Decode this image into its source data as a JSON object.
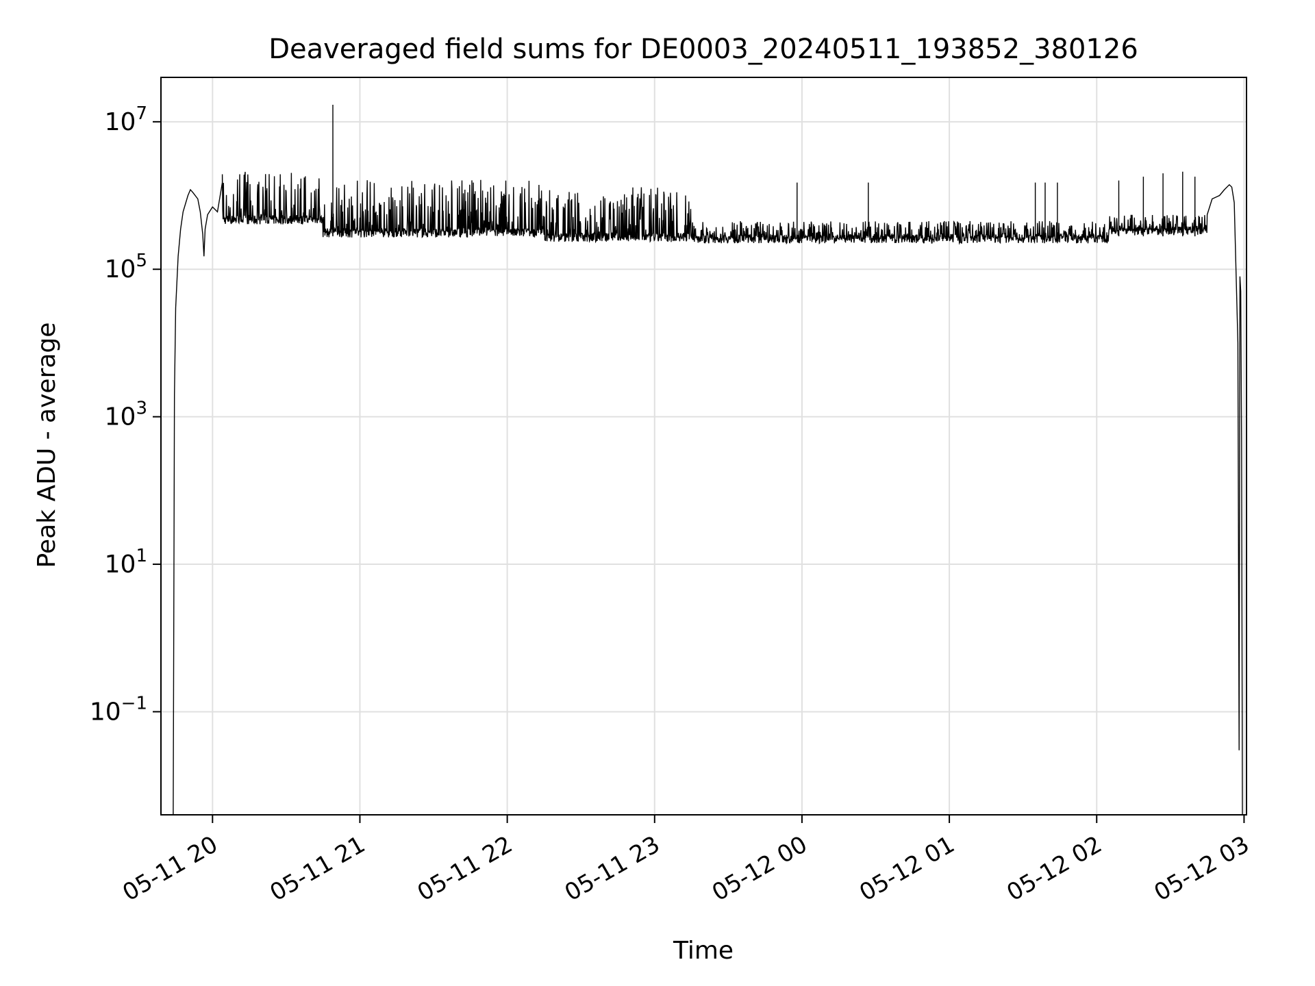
{
  "chart_data": {
    "type": "line",
    "title": "Deaveraged field sums for DE0003_20240511_193852_380126",
    "xlabel": "Time",
    "ylabel": "Peak ADU - average",
    "yscale": "log",
    "grid": true,
    "x_ticks": [
      "05-11 20",
      "05-11 21",
      "05-11 22",
      "05-11 23",
      "05-12 00",
      "05-12 01",
      "05-12 02",
      "05-12 03"
    ],
    "y_ticks": [
      {
        "value": 0.1,
        "base": "10",
        "exp": "−1"
      },
      {
        "value": 10,
        "base": "10",
        "exp": "1"
      },
      {
        "value": 1000,
        "base": "10",
        "exp": "3"
      },
      {
        "value": 100000,
        "base": "10",
        "exp": "5"
      },
      {
        "value": 10000000,
        "base": "10",
        "exp": "7"
      }
    ],
    "xlim": [
      "2024-05-11 19:39",
      "2024-05-12 03:01"
    ],
    "ylim": [
      0.004,
      40000000
    ],
    "series": [
      {
        "color": "#000000",
        "points": [
          [
            "2024-05-11 19:44",
            0.004
          ],
          [
            "2024-05-11 19:44:30",
            2000
          ],
          [
            "2024-05-11 19:45",
            30000
          ],
          [
            "2024-05-11 19:46",
            150000
          ],
          [
            "2024-05-11 19:47",
            350000
          ],
          [
            "2024-05-11 19:48",
            600000
          ],
          [
            "2024-05-11 19:50",
            1000000
          ],
          [
            "2024-05-11 19:51",
            1200000
          ],
          [
            "2024-05-11 19:52",
            1100000
          ],
          [
            "2024-05-11 19:54",
            900000
          ],
          [
            "2024-05-11 19:55",
            600000
          ],
          [
            "2024-05-11 19:56",
            300000
          ],
          [
            "2024-05-11 19:56:30",
            150000
          ],
          [
            "2024-05-11 19:57",
            350000
          ],
          [
            "2024-05-11 19:58",
            550000
          ],
          [
            "2024-05-11 20:00",
            700000
          ],
          [
            "2024-05-11 20:02",
            600000
          ],
          [
            "2024-05-11 20:04",
            1500000
          ]
        ],
        "dense_segments": [
          {
            "start": "2024-05-11 20:04",
            "end": "2024-05-11 20:45",
            "baseline": 450000,
            "peak": 2200000
          },
          {
            "start": "2024-05-11 20:45",
            "end": "2024-05-11 22:15",
            "baseline": 300000,
            "peak": 1700000
          },
          {
            "start": "2024-05-11 22:15",
            "end": "2024-05-11 23:15",
            "baseline": 260000,
            "peak": 1300000
          },
          {
            "start": "2024-05-11 23:15",
            "end": "2024-05-12 02:05",
            "baseline": 250000,
            "peak": 450000
          },
          {
            "start": "2024-05-12 02:05",
            "end": "2024-05-12 02:45",
            "baseline": 320000,
            "peak": 550000
          }
        ],
        "spikes": [
          [
            "2024-05-11 20:49",
            17000000
          ],
          [
            "2024-05-11 23:58",
            1500000
          ],
          [
            "2024-05-12 00:27",
            1500000
          ],
          [
            "2024-05-12 01:35",
            1500000
          ],
          [
            "2024-05-12 01:39",
            1500000
          ],
          [
            "2024-05-12 01:44",
            1500000
          ],
          [
            "2024-05-12 02:09",
            1600000
          ],
          [
            "2024-05-12 02:19",
            1800000
          ],
          [
            "2024-05-12 02:27",
            2000000
          ],
          [
            "2024-05-12 02:35",
            2100000
          ],
          [
            "2024-05-12 02:40",
            1800000
          ]
        ],
        "tail": [
          [
            "2024-05-12 02:45",
            550000
          ],
          [
            "2024-05-12 02:47",
            900000
          ],
          [
            "2024-05-12 02:50",
            1000000
          ],
          [
            "2024-05-12 02:52",
            1200000
          ],
          [
            "2024-05-12 02:54",
            1400000
          ],
          [
            "2024-05-12 02:55",
            1300000
          ],
          [
            "2024-05-12 02:56",
            800000
          ],
          [
            "2024-05-12 02:57:30",
            10000
          ],
          [
            "2024-05-12 02:58",
            0.03
          ],
          [
            "2024-05-12 02:58:20",
            80000
          ],
          [
            "2024-05-12 02:58:40",
            50000
          ],
          [
            "2024-05-12 02:59",
            500
          ],
          [
            "2024-05-12 02:59:20",
            0.004
          ]
        ]
      }
    ]
  }
}
